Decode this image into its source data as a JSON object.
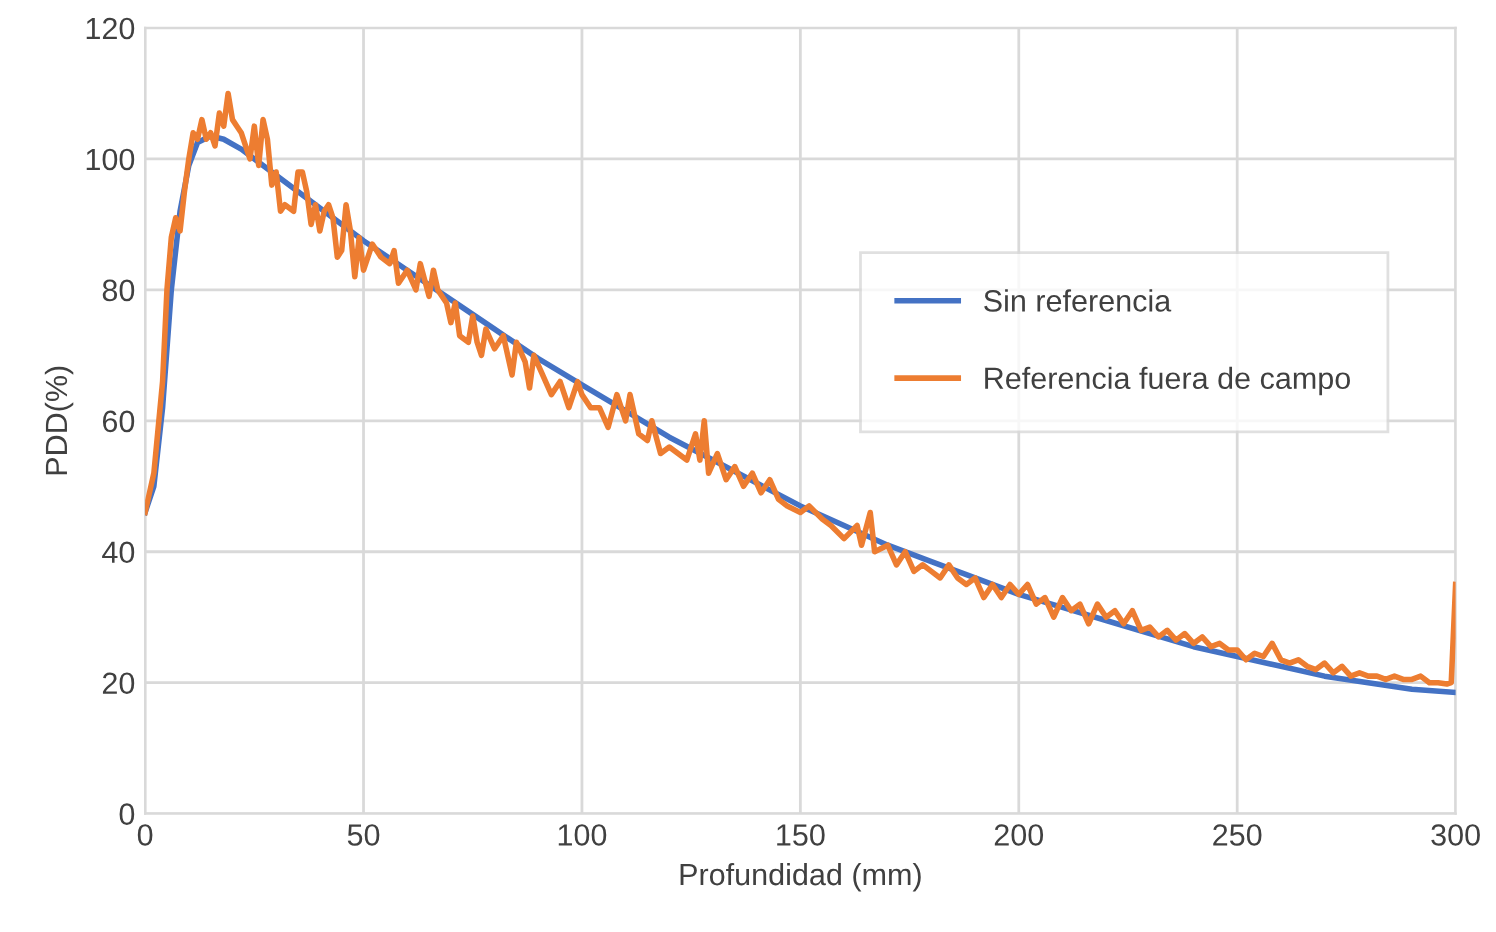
{
  "chart_data": {
    "type": "line",
    "xlabel": "Profundidad (mm)",
    "ylabel": "PDD(%)",
    "xlim": [
      0,
      300
    ],
    "ylim": [
      0,
      120
    ],
    "xticks": [
      0,
      50,
      100,
      150,
      200,
      250,
      300
    ],
    "yticks": [
      0,
      20,
      40,
      60,
      80,
      100,
      120
    ],
    "grid": true,
    "legend": "right",
    "marker": "none",
    "line_style": "solid",
    "series": [
      {
        "name": "Sin referencia",
        "color": "#4472c4",
        "x": [
          0,
          2,
          4,
          6,
          8,
          10,
          12,
          15,
          18,
          22,
          30,
          40,
          50,
          60,
          70,
          80,
          90,
          100,
          110,
          120,
          130,
          140,
          150,
          160,
          170,
          180,
          190,
          200,
          210,
          220,
          230,
          240,
          250,
          260,
          270,
          280,
          290,
          300
        ],
        "values": [
          46,
          50,
          62,
          80,
          92,
          99,
          102.5,
          103.5,
          103,
          101.5,
          97.5,
          92.5,
          87.5,
          83,
          78.5,
          74,
          69.5,
          65.5,
          61.5,
          57.5,
          54,
          50.5,
          47,
          44,
          41,
          38.5,
          36,
          33.5,
          31.5,
          29.5,
          27.5,
          25.5,
          24,
          22.5,
          21,
          20,
          19,
          18.5
        ]
      },
      {
        "name": "Referencia fuera de campo",
        "color": "#ed7d31",
        "x": [
          0,
          2,
          4,
          5,
          6,
          7,
          8,
          9,
          10,
          11,
          12,
          13,
          14,
          15,
          16,
          17,
          18,
          19,
          20,
          21,
          22,
          23,
          24,
          25,
          26,
          27,
          28,
          29,
          30,
          31,
          32,
          34,
          35,
          36,
          37,
          38,
          39,
          40,
          41,
          42,
          43,
          44,
          45,
          46,
          47,
          48,
          49,
          50,
          52,
          54,
          56,
          57,
          58,
          60,
          62,
          63,
          65,
          66,
          67,
          69,
          70,
          71,
          72,
          74,
          75,
          76,
          77,
          78,
          80,
          82,
          84,
          85,
          87,
          88,
          89,
          91,
          93,
          95,
          97,
          99,
          100,
          102,
          104,
          106,
          108,
          110,
          111,
          113,
          115,
          116,
          118,
          120,
          122,
          124,
          126,
          127,
          128,
          129,
          131,
          133,
          135,
          137,
          139,
          141,
          143,
          145,
          147,
          150,
          152,
          155,
          157,
          160,
          163,
          164,
          166,
          167,
          170,
          172,
          174,
          176,
          178,
          180,
          182,
          184,
          186,
          188,
          190,
          192,
          194,
          196,
          198,
          200,
          202,
          204,
          206,
          208,
          210,
          212,
          214,
          216,
          218,
          220,
          222,
          224,
          226,
          228,
          230,
          232,
          234,
          236,
          238,
          240,
          242,
          244,
          246,
          248,
          250,
          252,
          254,
          256,
          258,
          260,
          262,
          264,
          266,
          268,
          270,
          272,
          274,
          276,
          278,
          280,
          282,
          284,
          286,
          288,
          290,
          292,
          294,
          296,
          298,
          299,
          300
        ],
        "values": [
          46,
          52,
          66,
          80,
          88,
          91,
          89,
          95,
          100,
          104,
          103,
          106,
          103,
          104,
          102,
          107,
          105,
          110,
          106,
          105,
          104,
          102,
          100,
          105,
          99,
          106,
          103,
          96,
          98,
          92,
          93,
          92,
          98,
          98,
          95,
          90,
          93,
          89,
          92,
          93,
          91,
          85,
          86,
          93,
          89,
          82,
          88,
          83,
          87,
          85,
          84,
          86,
          81,
          83,
          80,
          84,
          79,
          83,
          80,
          78,
          75,
          78,
          73,
          72,
          76,
          72,
          70,
          74,
          71,
          73,
          67,
          72,
          69,
          65,
          70,
          67,
          64,
          66,
          62,
          66,
          64,
          62,
          62,
          59,
          64,
          60,
          64,
          58,
          57,
          60,
          55,
          56,
          55,
          54,
          58,
          54,
          60,
          52,
          55,
          51,
          53,
          50,
          52,
          49,
          51,
          48,
          47,
          46,
          47,
          45,
          44,
          42,
          44,
          41,
          46,
          40,
          41,
          38,
          40,
          37,
          38,
          37,
          36,
          38,
          36,
          35,
          36,
          33,
          35,
          33,
          35,
          33.5,
          35,
          32,
          33,
          30,
          33,
          31,
          32,
          29,
          32,
          30,
          31,
          29,
          31,
          28,
          28.5,
          27,
          28,
          26.5,
          27.5,
          26,
          27,
          25.5,
          26,
          25,
          25,
          23.5,
          24.5,
          24,
          26,
          23.5,
          23,
          23.5,
          22.5,
          22,
          23,
          21.5,
          22.5,
          21,
          21.5,
          21,
          21,
          20.5,
          21,
          20.5,
          20.5,
          21,
          20,
          20,
          19.8,
          20,
          35
        ]
      }
    ]
  }
}
